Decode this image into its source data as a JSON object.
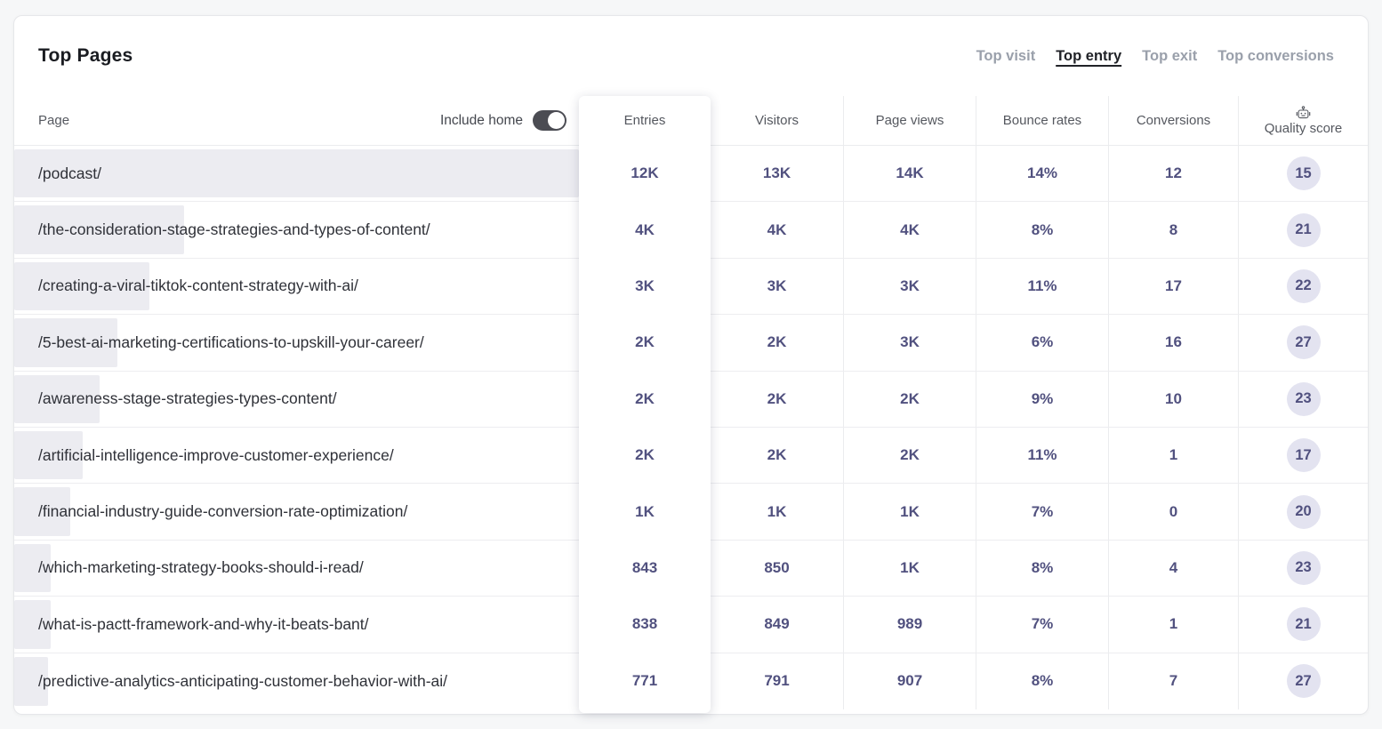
{
  "header": {
    "title": "Top Pages"
  },
  "tabs": [
    {
      "label": "Top visit",
      "active": false
    },
    {
      "label": "Top entry",
      "active": true
    },
    {
      "label": "Top exit",
      "active": false
    },
    {
      "label": "Top conversions",
      "active": false
    }
  ],
  "colors": {
    "number_color": "#51517f",
    "bar_color": "#ececf1",
    "circle_color": "#e3e3f0",
    "toggle_color": "#4b4c53"
  },
  "table": {
    "page_header": "Page",
    "include_home_label": "Include home",
    "include_home_on": true,
    "columns": [
      "Entries",
      "Visitors",
      "Page views",
      "Bounce rates",
      "Conversions",
      "Quality score"
    ],
    "quality_icon": "robot-icon",
    "rows": [
      {
        "page": "/podcast/",
        "bar_pct": 100,
        "entries": "12K",
        "visitors": "13K",
        "page_views": "14K",
        "bounce_rate": "14%",
        "conversions": "12",
        "quality_score": "15"
      },
      {
        "page": "/the-consideration-stage-strategies-and-types-of-content/",
        "bar_pct": 30.1,
        "entries": "4K",
        "visitors": "4K",
        "page_views": "4K",
        "bounce_rate": "8%",
        "conversions": "8",
        "quality_score": "21"
      },
      {
        "page": "/creating-a-viral-tiktok-content-strategy-with-ai/",
        "bar_pct": 23.9,
        "entries": "3K",
        "visitors": "3K",
        "page_views": "3K",
        "bounce_rate": "11%",
        "conversions": "17",
        "quality_score": "22"
      },
      {
        "page": "/5-best-ai-marketing-certifications-to-upskill-your-career/",
        "bar_pct": 18.3,
        "entries": "2K",
        "visitors": "2K",
        "page_views": "3K",
        "bounce_rate": "6%",
        "conversions": "16",
        "quality_score": "27"
      },
      {
        "page": "/awareness-stage-strategies-types-content/",
        "bar_pct": 15.1,
        "entries": "2K",
        "visitors": "2K",
        "page_views": "2K",
        "bounce_rate": "9%",
        "conversions": "10",
        "quality_score": "23"
      },
      {
        "page": "/artificial-intelligence-improve-customer-experience/",
        "bar_pct": 12.1,
        "entries": "2K",
        "visitors": "2K",
        "page_views": "2K",
        "bounce_rate": "11%",
        "conversions": "1",
        "quality_score": "17"
      },
      {
        "page": "/financial-industry-guide-conversion-rate-optimization/",
        "bar_pct": 9.9,
        "entries": "1K",
        "visitors": "1K",
        "page_views": "1K",
        "bounce_rate": "7%",
        "conversions": "0",
        "quality_score": "20"
      },
      {
        "page": "/which-marketing-strategy-books-should-i-read/",
        "bar_pct": 6.5,
        "entries": "843",
        "visitors": "850",
        "page_views": "1K",
        "bounce_rate": "8%",
        "conversions": "4",
        "quality_score": "23"
      },
      {
        "page": "/what-is-pactt-framework-and-why-it-beats-bant/",
        "bar_pct": 6.5,
        "entries": "838",
        "visitors": "849",
        "page_views": "989",
        "bounce_rate": "7%",
        "conversions": "1",
        "quality_score": "21"
      },
      {
        "page": "/predictive-analytics-anticipating-customer-behavior-with-ai/",
        "bar_pct": 6.0,
        "entries": "771",
        "visitors": "791",
        "page_views": "907",
        "bounce_rate": "8%",
        "conversions": "7",
        "quality_score": "27"
      }
    ]
  }
}
